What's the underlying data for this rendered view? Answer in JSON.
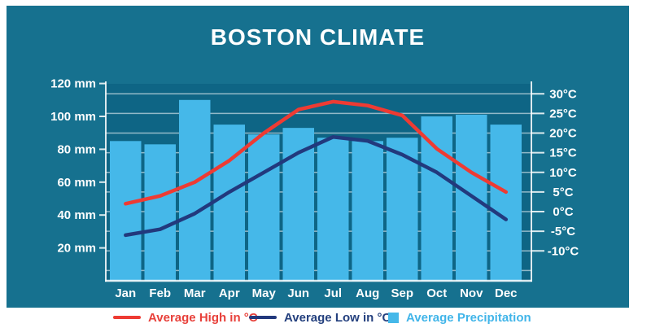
{
  "title": "BOSTON CLIMATE",
  "colors": {
    "page_bg": "#ffffff",
    "panel_bg": "#16718f",
    "plot_bg": "#0e6585",
    "bar": "#45b8e9",
    "high_line": "#ee3b33",
    "low_line": "#22397d",
    "grid": "rgba(255,255,255,0.55)",
    "axis": "rgba(255,255,255,0.85)",
    "axis_text": "#ffffff",
    "legend_high_text": "#e8403a",
    "legend_low_text": "#24407e",
    "legend_precip_text": "#41b5e9"
  },
  "chart_data": {
    "type": "bar+line combo",
    "title": "BOSTON CLIMATE",
    "categories": [
      "Jan",
      "Feb",
      "Mar",
      "Apr",
      "May",
      "Jun",
      "Jul",
      "Aug",
      "Sep",
      "Oct",
      "Nov",
      "Dec"
    ],
    "series": [
      {
        "name": "Average Precipitation",
        "type": "bar",
        "axis": "left",
        "unit": "mm",
        "values": [
          85,
          83,
          110,
          95,
          89,
          93,
          87,
          85,
          87,
          100,
          101,
          95
        ]
      },
      {
        "name": "Average High in °C",
        "type": "line",
        "axis": "right",
        "unit": "°C",
        "values": [
          2,
          4,
          7.5,
          13,
          20,
          26,
          28,
          27,
          24.5,
          16,
          10,
          5
        ]
      },
      {
        "name": "Average Low in °C",
        "type": "line",
        "axis": "right",
        "unit": "°C",
        "values": [
          -6,
          -4.5,
          -0.5,
          5,
          10,
          15,
          19,
          18,
          14.5,
          10,
          4,
          -2
        ]
      }
    ],
    "left_axis": {
      "unit": "mm",
      "range": [
        0,
        120
      ],
      "ticks": [
        {
          "value": 120,
          "label": "120 mm"
        },
        {
          "value": 100,
          "label": "100 mm"
        },
        {
          "value": 80,
          "label": "80 mm"
        },
        {
          "value": 60,
          "label": "60 mm"
        },
        {
          "value": 40,
          "label": "40 mm"
        },
        {
          "value": 20,
          "label": "20 mm"
        }
      ]
    },
    "right_axis": {
      "unit": "°C",
      "range_labeled": [
        -10,
        30
      ],
      "ticks": [
        {
          "value": 30,
          "label": "30°C"
        },
        {
          "value": 25,
          "label": "25°C"
        },
        {
          "value": 20,
          "label": "20°C"
        },
        {
          "value": 15,
          "label": "15°C"
        },
        {
          "value": 10,
          "label": "10°C"
        },
        {
          "value": 5,
          "label": "5°C"
        },
        {
          "value": 0,
          "label": "0°C"
        },
        {
          "value": -5,
          "label": "-5°C"
        },
        {
          "value": -10,
          "label": "-10°C"
        }
      ]
    },
    "grid_lines_at_celsius": [
      30,
      25,
      20,
      15,
      10,
      5,
      0,
      -5,
      -10,
      -15
    ],
    "legend": [
      {
        "label": "Average High in °C",
        "swatch": "red-line"
      },
      {
        "label": "Average Low in °C",
        "swatch": "navy-line"
      },
      {
        "label": "Average Precipitation",
        "swatch": "lightblue-square"
      }
    ],
    "legend_position": "bottom"
  }
}
